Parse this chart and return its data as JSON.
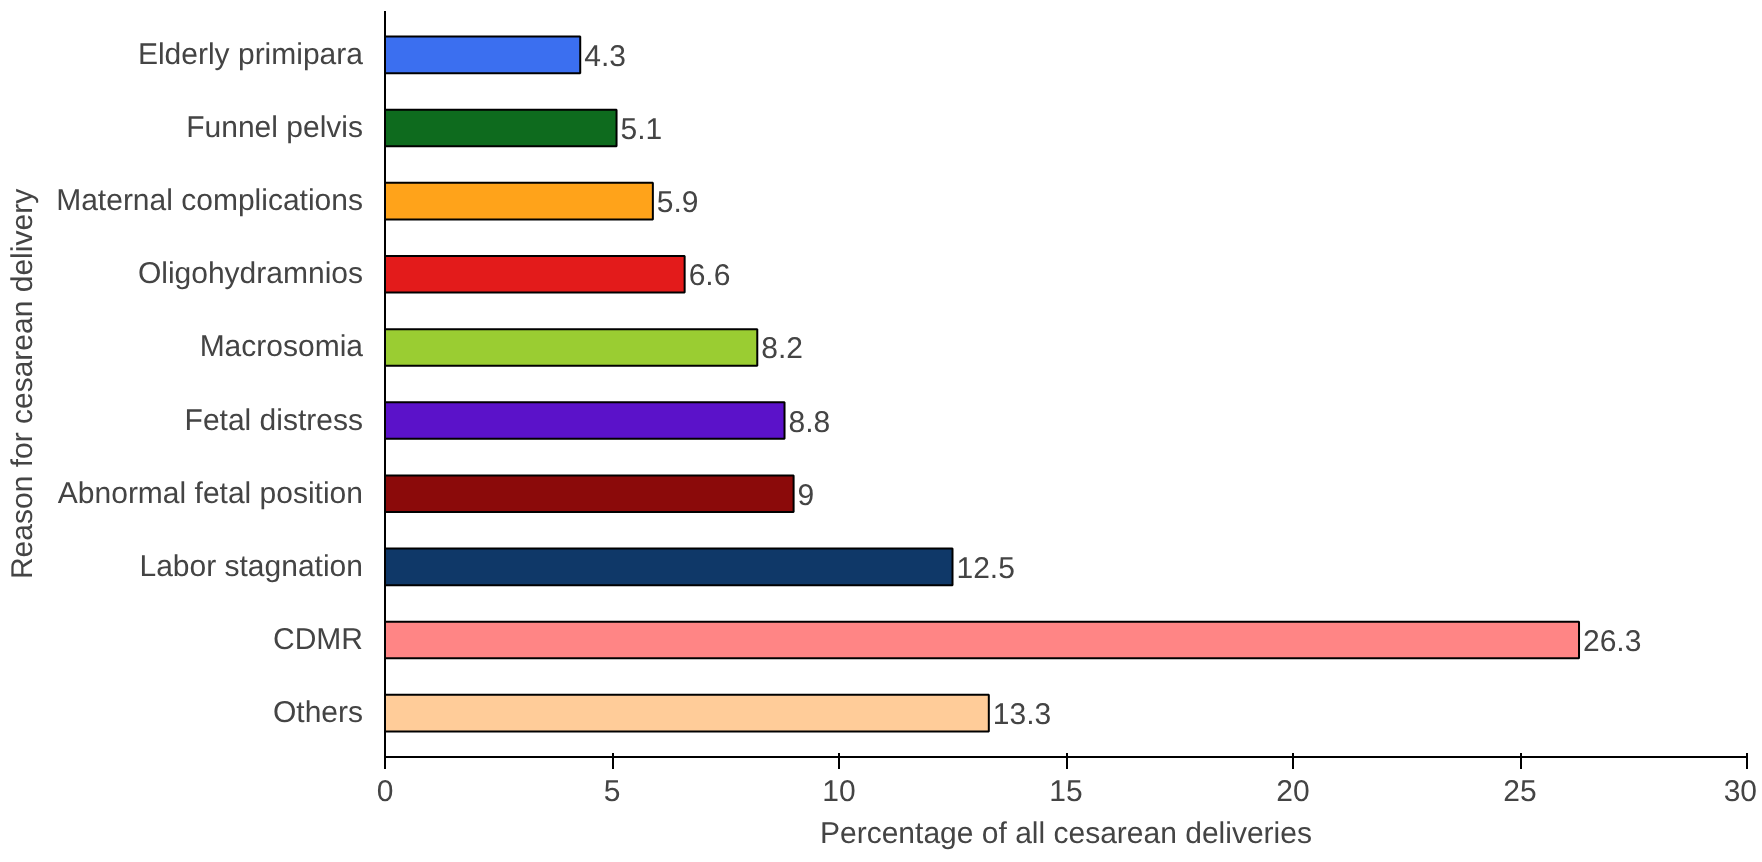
{
  "chart_data": {
    "type": "bar",
    "orientation": "horizontal",
    "xlabel": "Percentage of all cesarean deliveries",
    "ylabel": "Reason for cesarean delivery",
    "categories": [
      "Elderly primipara",
      "Funnel pelvis",
      "Maternal complications",
      "Oligohydramnios",
      "Macrosomia",
      "Fetal distress",
      "Abnormal fetal position",
      "Labor stagnation",
      "CDMR",
      "Others"
    ],
    "values": [
      4.3,
      5.1,
      5.9,
      6.6,
      8.2,
      8.8,
      9,
      12.5,
      26.3,
      13.3
    ],
    "colors": [
      "#3b6ff0",
      "#0e6b1e",
      "#ffa31a",
      "#e31b1b",
      "#9acd32",
      "#5b12c9",
      "#8b0a0a",
      "#0f3868",
      "#ff8585",
      "#ffcc99"
    ],
    "data_labels": true,
    "xlim": [
      0,
      30
    ],
    "xticks": [
      0,
      5,
      10,
      15,
      20,
      25,
      30
    ],
    "grid": false
  }
}
